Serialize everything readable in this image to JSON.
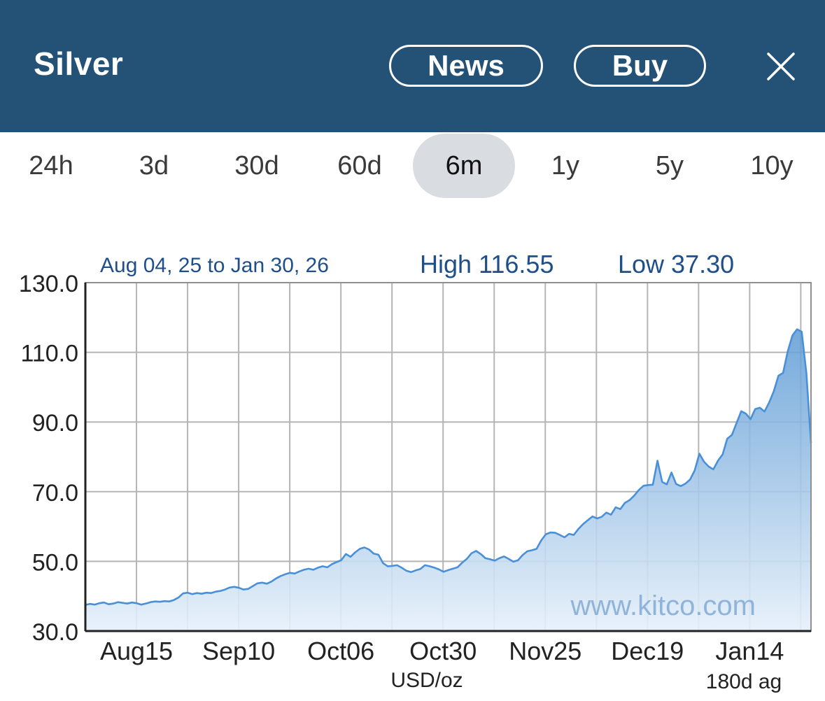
{
  "header": {
    "title": "Silver",
    "news_label": "News",
    "buy_label": "Buy"
  },
  "tabs": [
    {
      "label": "24h",
      "active": false
    },
    {
      "label": "3d",
      "active": false
    },
    {
      "label": "30d",
      "active": false
    },
    {
      "label": "60d",
      "active": false
    },
    {
      "label": "6m",
      "active": true
    },
    {
      "label": "1y",
      "active": false
    },
    {
      "label": "5y",
      "active": false
    },
    {
      "label": "10y",
      "active": false
    }
  ],
  "colors": {
    "header_bg": "#245277",
    "line": "#4a90d9",
    "info_text": "#1f4f8a",
    "grid": "#b5b5b5"
  },
  "chart_data": {
    "type": "area",
    "range_label": "Aug 04, 25 to Jan 30, 26",
    "high_label": "High 116.55",
    "low_label": "Low 37.30",
    "watermark": "www.kitco.com",
    "xlabel": "USD/oz",
    "corner_label": "180d ag",
    "ylim": [
      30,
      130
    ],
    "yticks": [
      "130.0",
      "110.0",
      "90.0",
      "70.0",
      "50.0",
      "30.0"
    ],
    "xticks": [
      "Aug15",
      "Sep10",
      "Oct06",
      "Oct30",
      "Nov25",
      "Dec19",
      "Jan14"
    ],
    "grid": true,
    "series": [
      {
        "values": [
          37.5,
          37.8,
          37.6,
          38.0,
          38.2,
          37.7,
          37.9,
          38.3,
          38.1,
          37.9,
          38.2,
          38.0,
          37.6,
          37.9,
          38.3,
          38.5,
          38.4,
          38.6,
          38.5,
          38.9,
          39.6,
          40.8,
          41.0,
          40.6,
          40.9,
          40.7,
          41.0,
          40.9,
          41.3,
          41.5,
          41.9,
          42.5,
          42.7,
          42.4,
          41.9,
          42.1,
          42.9,
          43.7,
          43.9,
          43.6,
          44.2,
          45.1,
          45.8,
          46.3,
          46.7,
          46.5,
          47.1,
          47.6,
          47.9,
          47.6,
          48.2,
          48.6,
          48.3,
          49.2,
          49.8,
          50.3,
          52.1,
          51.3,
          52.6,
          53.6,
          54.0,
          53.4,
          52.2,
          51.9,
          49.5,
          48.6,
          48.7,
          48.9,
          48.2,
          47.3,
          46.9,
          47.4,
          47.8,
          48.9,
          48.6,
          48.2,
          47.7,
          47.0,
          47.5,
          47.9,
          48.3,
          49.6,
          50.7,
          52.3,
          53.0,
          52.1,
          50.9,
          50.6,
          50.2,
          50.9,
          51.4,
          50.7,
          49.9,
          50.3,
          51.8,
          52.9,
          53.2,
          53.6,
          56.0,
          57.8,
          58.3,
          58.2,
          57.6,
          56.9,
          57.9,
          57.6,
          59.3,
          60.7,
          61.8,
          62.9,
          62.3,
          62.8,
          64.0,
          63.4,
          65.5,
          65.0,
          66.8,
          67.6,
          68.9,
          70.5,
          71.7,
          71.9,
          72.0,
          78.9,
          72.8,
          72.1,
          75.5,
          72.2,
          71.6,
          72.3,
          73.5,
          76.1,
          80.9,
          78.6,
          77.2,
          76.4,
          78.9,
          80.7,
          85.2,
          86.3,
          89.7,
          93.1,
          92.4,
          90.8,
          93.7,
          94.1,
          93.0,
          95.6,
          98.8,
          103.3,
          104.1,
          110.3,
          114.8,
          116.6,
          115.9,
          104.0,
          84.0
        ]
      }
    ]
  }
}
